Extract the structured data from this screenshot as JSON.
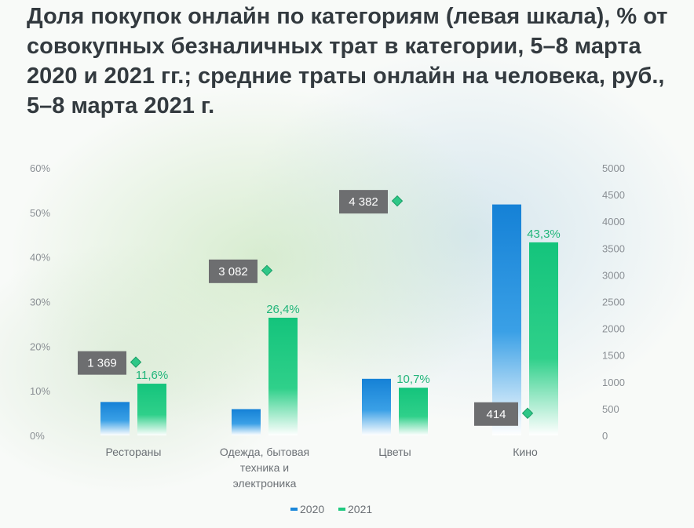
{
  "title": "Доля покупок онлайн по категориям (левая шкала), % от совокупных безналичных трат в категории, 5–8 марта 2020 и 2021 гг.; средние траты онлайн на человека, руб., 5–8 марта 2021 г.",
  "chart_data": {
    "type": "bar",
    "categories": [
      [
        "Рестораны"
      ],
      [
        "Одежда, бытовая",
        "техника и",
        "электроника"
      ],
      [
        "Цветы"
      ],
      [
        "Кино"
      ]
    ],
    "series": [
      {
        "name": "2020",
        "values": [
          7.5,
          5.9,
          12.7,
          51.8
        ],
        "color": "#1b87d9"
      },
      {
        "name": "2021",
        "values": [
          11.6,
          26.4,
          10.7,
          43.3
        ],
        "color": "#1fc97f"
      }
    ],
    "bar_labels_2021": [
      "11,6%",
      "26,4%",
      "10,7%",
      "43,3%"
    ],
    "secondary_series": {
      "values": [
        1369,
        3082,
        4382,
        414
      ],
      "labels": [
        "1 369",
        "3 082",
        "4 382",
        "414"
      ],
      "marker": "diamond",
      "color": "#2ec787"
    },
    "left_axis": {
      "ylim": [
        0,
        60
      ],
      "ticks": [
        "0%",
        "10%",
        "20%",
        "30%",
        "40%",
        "50%",
        "60%"
      ]
    },
    "right_axis": {
      "ylim": [
        0,
        5000
      ],
      "ticks": [
        "0",
        "500",
        "1000",
        "1500",
        "2000",
        "2500",
        "3000",
        "3500",
        "4000",
        "4500",
        "5000"
      ]
    },
    "legend": [
      "2020",
      "2021"
    ],
    "legend_position": "bottom"
  }
}
